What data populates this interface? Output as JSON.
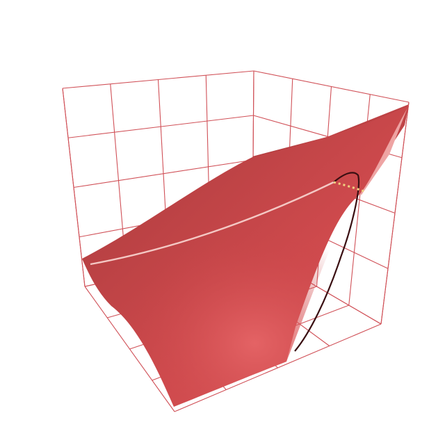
{
  "chart_data": {
    "type": "surface3d",
    "title": "",
    "xlabel": "",
    "ylabel": "",
    "zlabel": "",
    "axes_visible": false,
    "tick_labels_visible": false,
    "grid": true,
    "legend": "none",
    "xlim": [
      0,
      1
    ],
    "ylim": [
      0,
      1
    ],
    "zlim": [
      0,
      1
    ],
    "grid_divisions": 4,
    "x": [
      0,
      0.25,
      0.5,
      0.75,
      1.0
    ],
    "y": [
      0,
      0.25,
      0.5,
      0.75,
      1.0
    ],
    "z": [
      [
        0.02,
        0.05,
        0.1,
        0.18,
        0.28
      ],
      [
        0.1,
        0.12,
        0.18,
        0.28,
        0.4
      ],
      [
        0.24,
        0.26,
        0.32,
        0.42,
        0.56
      ],
      [
        0.42,
        0.44,
        0.5,
        0.62,
        0.78
      ],
      [
        0.62,
        0.66,
        0.74,
        0.86,
        0.98
      ]
    ],
    "series": [
      {
        "kind": "surface"
      },
      {
        "kind": "curve"
      },
      {
        "kind": "curve",
        "dashed": true
      },
      {
        "kind": "curve"
      }
    ],
    "colors": {
      "surface": "#cf4a4d",
      "surface_light": "#e05e60",
      "surface_dark": "#a83a3c",
      "grid": "#d05057",
      "curve_light": "#f4c8c4",
      "curve_dashed": "#f0d080",
      "curve_dark": "#3a0f12"
    }
  }
}
